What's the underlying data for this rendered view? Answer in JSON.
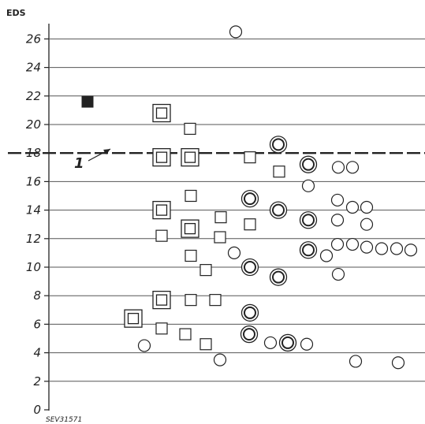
{
  "chart_data": {
    "type": "scatter",
    "ylabel": "EDS",
    "ylim": [
      0,
      26
    ],
    "yticks": [
      "0",
      "2",
      "4",
      "6",
      "8",
      "10",
      "12",
      "14",
      "16",
      "18",
      "20",
      "22",
      "24",
      "26"
    ],
    "grid": true,
    "reference_line": {
      "y": 18,
      "style": "dashed",
      "label": "1"
    },
    "note": "SEV31571",
    "series": [
      {
        "marker": "filled-square",
        "points": [
          {
            "x": 111,
            "y": 21.6
          }
        ]
      },
      {
        "marker": "double-square",
        "points": [
          {
            "x": 205,
            "y": 20.8
          },
          {
            "x": 205,
            "y": 17.7
          },
          {
            "x": 241,
            "y": 17.7
          },
          {
            "x": 205,
            "y": 14.0
          },
          {
            "x": 241,
            "y": 12.7
          },
          {
            "x": 205,
            "y": 7.7
          },
          {
            "x": 169,
            "y": 6.4
          }
        ]
      },
      {
        "marker": "square",
        "points": [
          {
            "x": 241,
            "y": 19.7
          },
          {
            "x": 317,
            "y": 17.7
          },
          {
            "x": 354,
            "y": 16.7
          },
          {
            "x": 242,
            "y": 15.0
          },
          {
            "x": 280,
            "y": 13.5
          },
          {
            "x": 317,
            "y": 13.0
          },
          {
            "x": 205,
            "y": 12.2
          },
          {
            "x": 279,
            "y": 12.1
          },
          {
            "x": 242,
            "y": 10.8
          },
          {
            "x": 261,
            "y": 9.8
          },
          {
            "x": 242,
            "y": 7.7
          },
          {
            "x": 273,
            "y": 7.7
          },
          {
            "x": 205,
            "y": 5.7
          },
          {
            "x": 235,
            "y": 5.3
          },
          {
            "x": 261,
            "y": 4.6
          }
        ]
      },
      {
        "marker": "double-circle",
        "points": [
          {
            "x": 353,
            "y": 18.6
          },
          {
            "x": 391,
            "y": 17.2
          },
          {
            "x": 317,
            "y": 14.8
          },
          {
            "x": 353,
            "y": 14.0
          },
          {
            "x": 391,
            "y": 13.3
          },
          {
            "x": 391,
            "y": 11.2
          },
          {
            "x": 317,
            "y": 10.0
          },
          {
            "x": 353,
            "y": 9.3
          },
          {
            "x": 317,
            "y": 6.8
          },
          {
            "x": 316,
            "y": 5.3
          },
          {
            "x": 365,
            "y": 4.7
          }
        ]
      },
      {
        "marker": "circle",
        "points": [
          {
            "x": 299,
            "y": 26.5
          },
          {
            "x": 429,
            "y": 17.0
          },
          {
            "x": 447,
            "y": 17.0
          },
          {
            "x": 391,
            "y": 15.7
          },
          {
            "x": 428,
            "y": 14.7
          },
          {
            "x": 447,
            "y": 14.2
          },
          {
            "x": 465,
            "y": 14.2
          },
          {
            "x": 428,
            "y": 13.3
          },
          {
            "x": 465,
            "y": 13.0
          },
          {
            "x": 428,
            "y": 11.6
          },
          {
            "x": 447,
            "y": 11.6
          },
          {
            "x": 465,
            "y": 11.4
          },
          {
            "x": 484,
            "y": 11.3
          },
          {
            "x": 503,
            "y": 11.3
          },
          {
            "x": 521,
            "y": 11.2
          },
          {
            "x": 297,
            "y": 11.0
          },
          {
            "x": 414,
            "y": 10.8
          },
          {
            "x": 429,
            "y": 9.5
          },
          {
            "x": 183,
            "y": 4.5
          },
          {
            "x": 343,
            "y": 4.7
          },
          {
            "x": 389,
            "y": 4.6
          },
          {
            "x": 279,
            "y": 3.5
          },
          {
            "x": 451,
            "y": 3.4
          },
          {
            "x": 505,
            "y": 3.3
          }
        ]
      }
    ]
  }
}
